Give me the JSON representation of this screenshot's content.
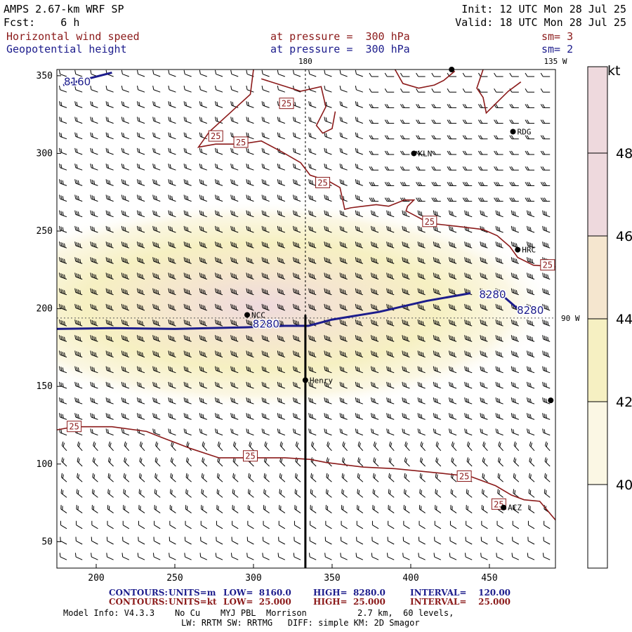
{
  "header": {
    "model": "AMPS 2.67-km WRF SP",
    "fcst": "Fcst:    6 h",
    "init": "Init: 12 UTC Mon 28 Jul 25",
    "valid": "Valid: 18 UTC Mon 28 Jul 25",
    "field1": "Horizontal wind speed",
    "field2": "Geopotential height",
    "level1": "at pressure =  300 hPa",
    "level2": "at pressure =  300 hPa",
    "sm1": "sm= 3",
    "sm2": "sm= 2"
  },
  "footer": {
    "c1_label": "CONTOURS:",
    "c1_units": "UNITS=m",
    "c1_low": "LOW=  8160.0",
    "c1_high": "HIGH=  8280.0",
    "c1_int": "INTERVAL=    120.00",
    "c2_label": "CONTOURS:",
    "c2_units": "UNITS=kt",
    "c2_low": "LOW=  25.000",
    "c2_high": "HIGH=  25.000",
    "c2_int": "INTERVAL=    25.000",
    "info1": "Model Info: V4.3.3    No Cu    MYJ PBL  Morrison          2.7 km,  60 levels,",
    "info2": "LW: RRTM SW: RRTMG   DIFF: simple KM: 2D Smagor"
  },
  "colors": {
    "height_contour": "#1c1c8c",
    "speed_contour": "#8b1a1a",
    "shade_40": "#ffffff",
    "shade_42": "#fbf7e4",
    "shade_44": "#f6f0c2",
    "shade_46": "#f5e6cf",
    "shade_48": "#eed9dd"
  },
  "chart_data": {
    "type": "map",
    "xlim": [
      175,
      492
    ],
    "ylim": [
      33,
      354
    ],
    "x_ticks": [
      200,
      250,
      300,
      350,
      400,
      450
    ],
    "y_ticks": [
      50,
      100,
      150,
      200,
      250,
      300,
      350
    ],
    "top_labels": [
      "180",
      "135 W"
    ],
    "right_labels": [
      "90 W"
    ],
    "colorbar": {
      "unit": "kt",
      "levels": [
        40,
        42,
        44,
        46,
        48
      ],
      "ticks": [
        "40",
        "42",
        "44",
        "46",
        "48"
      ]
    },
    "geopotential_contours": [
      {
        "value": 8160,
        "label": "8160",
        "points": [
          [
            179,
            344
          ],
          [
            210,
            352
          ]
        ]
      },
      {
        "value": 8280,
        "label": "8280",
        "points": [
          [
            175,
            187
          ],
          [
            210,
            187.5
          ],
          [
            250,
            187
          ],
          [
            295,
            188
          ],
          [
            320,
            189
          ],
          [
            335,
            189
          ],
          [
            350,
            193
          ],
          [
            380,
            198
          ],
          [
            410,
            205
          ],
          [
            438,
            210
          ]
        ]
      },
      {
        "value": 8280,
        "label": "8280",
        "points": [
          [
            460,
            207
          ],
          [
            468,
            200
          ]
        ]
      }
    ],
    "geopotential_labels": [
      {
        "text": "8160",
        "x": 188,
        "y": 346
      },
      {
        "text": "8280",
        "x": 308,
        "y": 190
      },
      {
        "text": "8280",
        "x": 452,
        "y": 209
      },
      {
        "text": "8280",
        "x": 476,
        "y": 199
      }
    ],
    "wind_speed_contours": [
      {
        "value": 25,
        "points": [
          [
            300,
            354
          ],
          [
            298,
            338
          ],
          [
            285,
            326
          ],
          [
            272,
            314
          ],
          [
            265,
            304
          ],
          [
            276,
            306
          ],
          [
            292,
            306
          ],
          [
            305,
            308
          ],
          [
            318,
            301
          ],
          [
            330,
            294
          ],
          [
            336,
            286
          ],
          [
            348,
            282
          ],
          [
            355,
            278
          ],
          [
            358,
            264
          ],
          [
            362,
            265
          ],
          [
            378,
            267
          ],
          [
            386,
            266
          ],
          [
            396,
            270
          ],
          [
            402,
            270
          ],
          [
            398,
            266
          ],
          [
            397,
            263
          ],
          [
            412,
            255
          ],
          [
            430,
            253
          ],
          [
            446,
            251
          ],
          [
            455,
            247
          ],
          [
            463,
            240
          ],
          [
            468,
            233
          ],
          [
            478,
            228
          ],
          [
            492,
            227
          ]
        ]
      },
      {
        "value": 25,
        "points": [
          [
            175,
            122
          ],
          [
            186,
            124
          ],
          [
            210,
            124
          ],
          [
            232,
            121
          ],
          [
            242,
            117
          ],
          [
            260,
            110
          ],
          [
            278,
            104
          ],
          [
            300,
            104
          ],
          [
            320,
            104
          ],
          [
            336,
            103
          ],
          [
            346,
            101
          ],
          [
            370,
            98
          ],
          [
            390,
            97
          ],
          [
            420,
            94
          ],
          [
            438,
            92
          ],
          [
            454,
            86
          ],
          [
            464,
            80
          ],
          [
            472,
            77
          ],
          [
            482,
            76
          ],
          [
            492,
            64
          ]
        ]
      },
      {
        "value": 25,
        "points": [
          [
            305,
            348
          ],
          [
            330,
            340
          ],
          [
            343,
            343
          ],
          [
            346,
            330
          ],
          [
            340,
            318
          ],
          [
            344,
            313
          ],
          [
            350,
            316
          ],
          [
            352,
            327
          ]
        ]
      },
      {
        "value": 25,
        "points": [
          [
            390,
            354
          ],
          [
            395,
            345
          ],
          [
            405,
            342
          ],
          [
            415,
            344
          ],
          [
            421,
            347
          ],
          [
            428,
            353
          ]
        ]
      },
      {
        "value": 25,
        "points": [
          [
            446,
            354
          ],
          [
            442,
            342
          ],
          [
            446,
            336
          ],
          [
            448,
            326
          ],
          [
            456,
            334
          ],
          [
            462,
            340
          ],
          [
            470,
            346
          ]
        ]
      }
    ],
    "wind_speed_labels": [
      {
        "text": "25",
        "x": 321,
        "y": 332
      },
      {
        "text": "25",
        "x": 276,
        "y": 311
      },
      {
        "text": "25",
        "x": 292,
        "y": 307
      },
      {
        "text": "25",
        "x": 344,
        "y": 281
      },
      {
        "text": "25",
        "x": 412,
        "y": 256
      },
      {
        "text": "25",
        "x": 487,
        "y": 228
      },
      {
        "text": "25",
        "x": 186,
        "y": 124
      },
      {
        "text": "25",
        "x": 298,
        "y": 105
      },
      {
        "text": "25",
        "x": 434,
        "y": 92
      },
      {
        "text": "25",
        "x": 456,
        "y": 74
      }
    ],
    "stations": [
      {
        "name": "RDG",
        "x": 465,
        "y": 314
      },
      {
        "name": "KLN",
        "x": 402,
        "y": 300
      },
      {
        "name": "HRC",
        "x": 468,
        "y": 238
      },
      {
        "name": "NCC",
        "x": 296,
        "y": 196
      },
      {
        "name": "Henry",
        "x": 333,
        "y": 154
      },
      {
        "name": "ACZ",
        "x": 459,
        "y": 72
      },
      {
        "name": "",
        "x": 489,
        "y": 141
      },
      {
        "name": "",
        "x": 426,
        "y": 354
      }
    ],
    "meridian": {
      "x": 333,
      "label": "180"
    },
    "parallel": {
      "y": 194,
      "label": "90 W"
    },
    "cross_section": {
      "x": 333,
      "y_from": 33,
      "y_to": 196
    },
    "wind_max": {
      "center": [
        305,
        202
      ],
      "peak_kt": 48
    }
  }
}
